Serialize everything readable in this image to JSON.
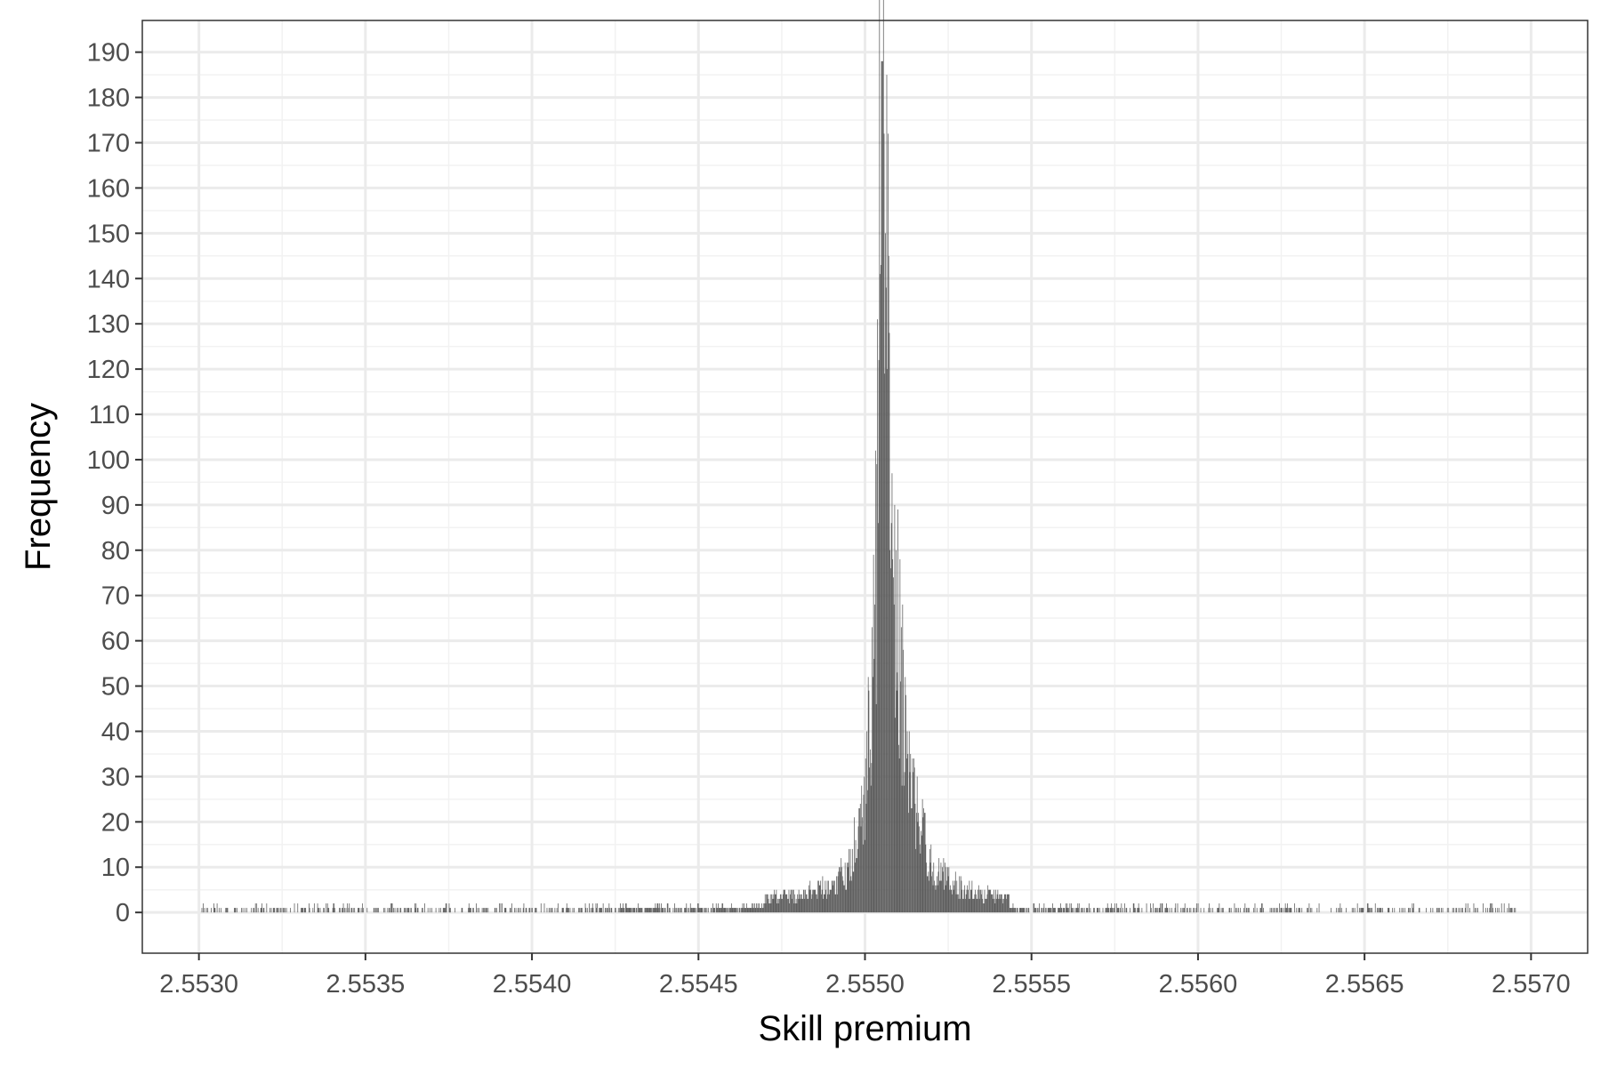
{
  "chart_data": {
    "type": "bar",
    "title": "",
    "xlabel": "Skill premium",
    "ylabel": "Frequency",
    "xlim": [
      2.55283,
      2.55717
    ],
    "ylim": [
      -9,
      197
    ],
    "x_ticks": [
      2.553,
      2.5535,
      2.554,
      2.5545,
      2.555,
      2.5555,
      2.556,
      2.5565,
      2.557
    ],
    "x_tick_labels": [
      "2.5530",
      "2.5535",
      "2.5540",
      "2.5545",
      "2.5550",
      "2.5555",
      "2.5560",
      "2.5565",
      "2.5570"
    ],
    "y_ticks": [
      0,
      10,
      20,
      30,
      40,
      50,
      60,
      70,
      80,
      90,
      100,
      110,
      120,
      130,
      140,
      150,
      160,
      170,
      180,
      190
    ],
    "y_tick_labels": [
      "0",
      "10",
      "20",
      "30",
      "40",
      "50",
      "60",
      "70",
      "80",
      "90",
      "100",
      "110",
      "120",
      "130",
      "140",
      "150",
      "160",
      "170",
      "180",
      "190"
    ],
    "grid": true,
    "bar_color": "#595959",
    "peak": {
      "x": 2.55505,
      "value": 188
    },
    "profile": [
      {
        "x": 2.553,
        "value": 1
      },
      {
        "x": 2.5535,
        "value": 1
      },
      {
        "x": 2.554,
        "value": 1
      },
      {
        "x": 2.5543,
        "value": 2
      },
      {
        "x": 2.5545,
        "value": 2
      },
      {
        "x": 2.5547,
        "value": 3
      },
      {
        "x": 2.5548,
        "value": 4
      },
      {
        "x": 2.5549,
        "value": 6
      },
      {
        "x": 2.55495,
        "value": 10
      },
      {
        "x": 2.555,
        "value": 25
      },
      {
        "x": 2.55503,
        "value": 60
      },
      {
        "x": 2.55505,
        "value": 188
      },
      {
        "x": 2.55507,
        "value": 120
      },
      {
        "x": 2.5551,
        "value": 60
      },
      {
        "x": 2.55513,
        "value": 30
      },
      {
        "x": 2.5552,
        "value": 10
      },
      {
        "x": 2.5553,
        "value": 5
      },
      {
        "x": 2.5555,
        "value": 2
      },
      {
        "x": 2.556,
        "value": 1
      },
      {
        "x": 2.557,
        "value": 1
      }
    ]
  },
  "colors": {
    "panel_border": "#333333",
    "grid_major": "#ebebeb",
    "grid_minor": "#f2f2f2",
    "bars": "#595959"
  }
}
